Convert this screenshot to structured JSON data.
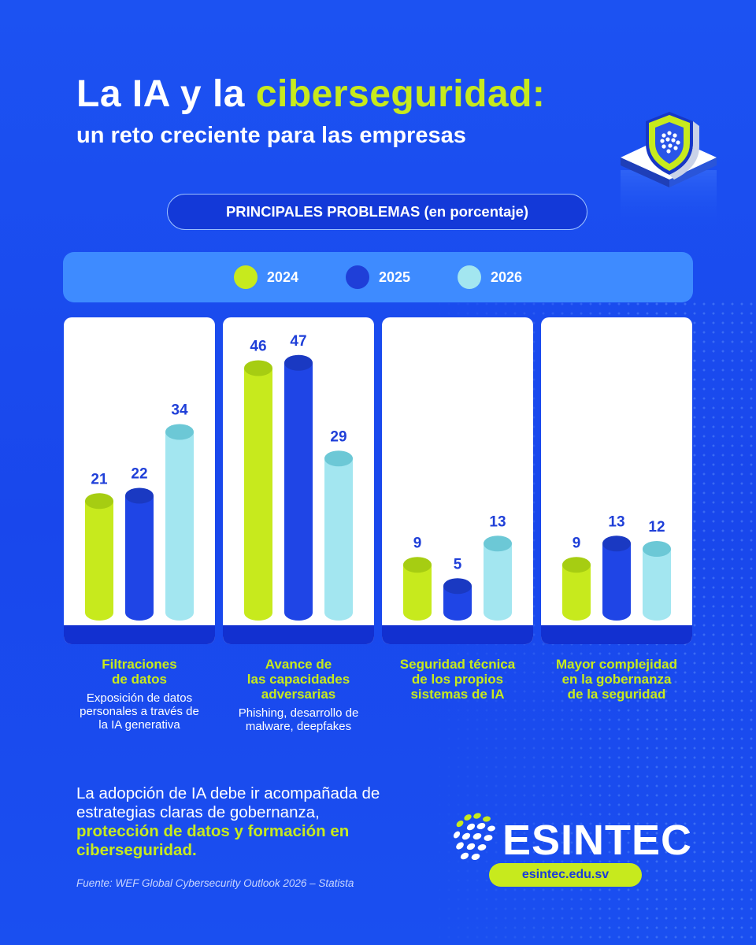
{
  "header": {
    "title_part1": "La IA y la ",
    "title_accent": "ciberseguridad:",
    "subtitle": "un reto creciente para las empresas",
    "section_heading": "PRINCIPALES PROBLEMAS (en porcentaje)"
  },
  "colors": {
    "background": "#1a4ff0",
    "accent_green": "#c7ea1d",
    "series_2024": "#c7ea1d",
    "series_2025": "#1f45e6",
    "series_2026": "#a3e6f0"
  },
  "chart_data": {
    "type": "bar",
    "title": "PRINCIPALES PROBLEMAS (en porcentaje)",
    "categories": [
      "Filtraciones de datos",
      "Avance de las capacidades adversarias",
      "Seguridad técnica de los propios sistemas de IA",
      "Mayor complejidad en la gobernanza de la seguridad"
    ],
    "series": [
      {
        "name": "2024",
        "values": [
          21,
          46,
          9,
          9
        ]
      },
      {
        "name": "2025",
        "values": [
          22,
          47,
          5,
          13
        ]
      },
      {
        "name": "2026",
        "values": [
          34,
          29,
          13,
          12
        ]
      }
    ],
    "ylim": [
      0,
      50
    ],
    "legend_position": "top",
    "grid": false
  },
  "categories": [
    {
      "title_lines": [
        "Filtraciones",
        "de datos"
      ],
      "desc_lines": [
        "Exposición de datos",
        "personales a través de",
        "la IA generativa"
      ]
    },
    {
      "title_lines": [
        "Avance de",
        "las capacidades",
        "adversarias"
      ],
      "desc_lines": [
        "Phishing, desarrollo de",
        "malware, deepfakes"
      ]
    },
    {
      "title_lines": [
        "Seguridad técnica",
        "de los propios",
        "sistemas de IA"
      ],
      "desc_lines": []
    },
    {
      "title_lines": [
        "Mayor complejidad",
        "en la gobernanza",
        "de la seguridad"
      ],
      "desc_lines": []
    }
  ],
  "footer": {
    "text_plain": "La adopción de IA debe ir acompañada de estrategias claras de gobernanza,",
    "text_highlight": "protección de datos y formación en ciberseguridad.",
    "source": "Fuente: WEF Global Cybersecurity Outlook 2026 – Statista",
    "logo_text": "ESINTEC",
    "url": "esintec.edu.sv"
  },
  "icons": {
    "shield": "shield-icon",
    "logo": "esintec-logo-icon"
  }
}
